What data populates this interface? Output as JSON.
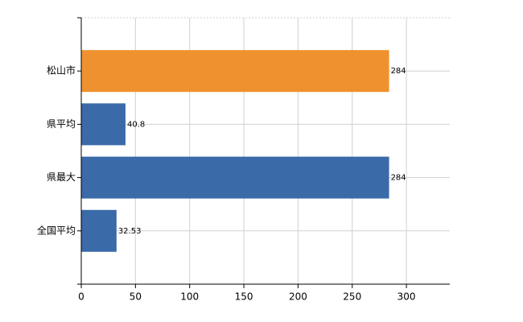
{
  "chart_data": {
    "type": "barh",
    "categories": [
      "松山市",
      "県平均",
      "県最大",
      "全国平均"
    ],
    "values": [
      284,
      40.8,
      284,
      32.53
    ],
    "colors": [
      "#ef912e",
      "#3a6aa8",
      "#3a6aa8",
      "#3a6aa8"
    ],
    "xlim": [
      0,
      340
    ],
    "xticks": [
      0,
      50,
      100,
      150,
      200,
      250,
      300
    ],
    "grid": true
  }
}
